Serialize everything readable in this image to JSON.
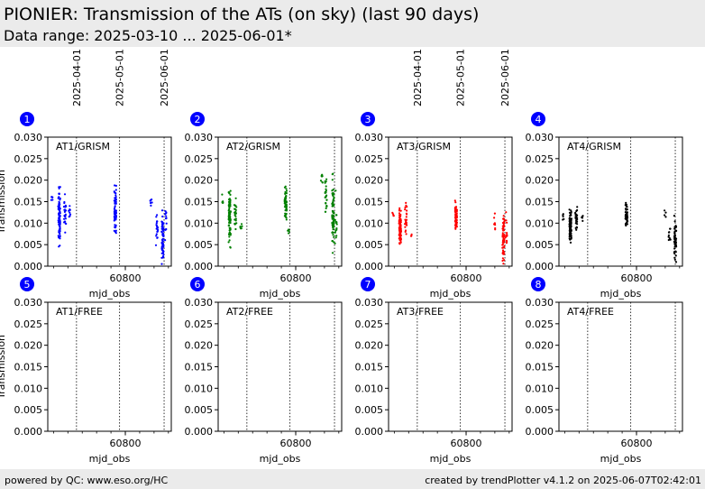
{
  "header": {
    "title": "PIONIER: Transmission of the ATs (on sky) (last 90 days)",
    "subtitle": "Data range: 2025-03-10 ... 2025-06-01*"
  },
  "footer": {
    "left": "powered by QC: www.eso.org/HC",
    "right": "created by trendPlotter v4.1.2 on 2025-06-07T02:42:01"
  },
  "chart_data": {
    "type": "scatter",
    "xlabel": "mjd_obs",
    "ylabel": "Transmission",
    "xlim": [
      60746,
      60832
    ],
    "ylim": [
      0,
      0.03
    ],
    "yticks": [
      0.0,
      0.005,
      0.01,
      0.015,
      0.02,
      0.025,
      0.03
    ],
    "ytick_labels": [
      "0.000",
      "0.005",
      "0.010",
      "0.015",
      "0.020",
      "0.025",
      "0.030"
    ],
    "xticks": [
      60800
    ],
    "xtick_labels": [
      "60800"
    ],
    "date_markers": [
      {
        "label": "2025-04-01",
        "mjd": 60766
      },
      {
        "label": "2025-05-01",
        "mjd": 60796
      },
      {
        "label": "2025-06-01",
        "mjd": 60827
      }
    ],
    "panels": [
      {
        "number": "1",
        "label": "AT1/GRISM",
        "color": "#0000ff",
        "clusters": [
          [
            60749,
            0.0155,
            0.0005,
            6
          ],
          [
            60754,
            0.0115,
            0.003,
            90
          ],
          [
            60758,
            0.012,
            0.002,
            25
          ],
          [
            60761,
            0.0125,
            0.001,
            8
          ],
          [
            60793,
            0.0135,
            0.0025,
            60
          ],
          [
            60818,
            0.015,
            0.0006,
            6
          ],
          [
            60822,
            0.009,
            0.0025,
            20
          ],
          [
            60826,
            0.0065,
            0.003,
            60
          ],
          [
            60828,
            0.01,
            0.002,
            12
          ]
        ]
      },
      {
        "number": "2",
        "label": "AT2/GRISM",
        "color": "#008000",
        "clusters": [
          [
            60749,
            0.0148,
            0.0007,
            6
          ],
          [
            60754,
            0.012,
            0.003,
            90
          ],
          [
            60758,
            0.0125,
            0.0018,
            25
          ],
          [
            60762,
            0.0088,
            0.0005,
            6
          ],
          [
            60793,
            0.0145,
            0.0018,
            55
          ],
          [
            60795,
            0.008,
            0.0004,
            4
          ],
          [
            60818,
            0.0205,
            0.001,
            8
          ],
          [
            60821,
            0.0155,
            0.002,
            25
          ],
          [
            60826,
            0.0115,
            0.004,
            70
          ],
          [
            60828,
            0.01,
            0.003,
            15
          ]
        ]
      },
      {
        "number": "3",
        "label": "AT3/GRISM",
        "color": "#ff0000",
        "clusters": [
          [
            60749,
            0.012,
            0.0003,
            4
          ],
          [
            60754,
            0.009,
            0.002,
            90
          ],
          [
            60758,
            0.011,
            0.0015,
            25
          ],
          [
            60762,
            0.007,
            0.0003,
            3
          ],
          [
            60793,
            0.0115,
            0.0015,
            55
          ],
          [
            60820,
            0.0105,
            0.001,
            8
          ],
          [
            60826,
            0.0065,
            0.0025,
            60
          ],
          [
            60828,
            0.008,
            0.002,
            12
          ]
        ]
      },
      {
        "number": "4",
        "label": "AT4/GRISM",
        "color": "#000000",
        "clusters": [
          [
            60749,
            0.0115,
            0.0004,
            5
          ],
          [
            60754,
            0.0095,
            0.002,
            90
          ],
          [
            60758,
            0.0115,
            0.0015,
            25
          ],
          [
            60762,
            0.011,
            0.0008,
            6
          ],
          [
            60793,
            0.0118,
            0.0015,
            50
          ],
          [
            60820,
            0.0125,
            0.0005,
            4
          ],
          [
            60823,
            0.0072,
            0.001,
            10
          ],
          [
            60827,
            0.006,
            0.0025,
            60
          ]
        ]
      },
      {
        "number": "5",
        "label": "AT1/FREE",
        "color": "#0000ff",
        "clusters": []
      },
      {
        "number": "6",
        "label": "AT2/FREE",
        "color": "#008000",
        "clusters": []
      },
      {
        "number": "7",
        "label": "AT3/FREE",
        "color": "#ff0000",
        "clusters": []
      },
      {
        "number": "8",
        "label": "AT4/FREE",
        "color": "#000000",
        "clusters": []
      }
    ]
  }
}
